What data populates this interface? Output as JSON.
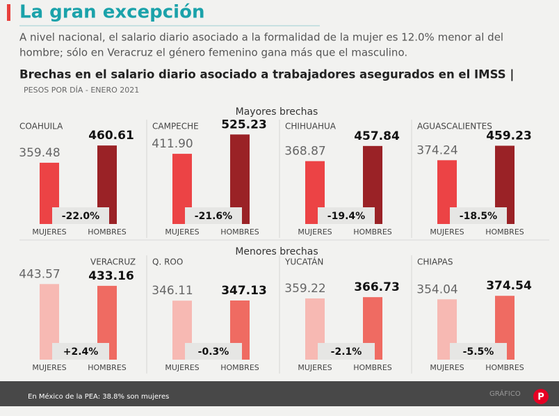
{
  "header": {
    "title": "La gran excepción",
    "subtitle_lines": [
      "A nivel nacional, el salario diario asociado a la formalidad de la mujer es 12.0% menor al del",
      "hombre; sólo en Veracruz el género femenino gana más que el masculino."
    ],
    "chart_title": "Brechas en el salario diario asociado a trabajadores asegurados en el IMSS |",
    "units": "PESOS POR DÍA - ENERO 2021"
  },
  "sections": [
    "Mayores brechas",
    "Menores brechas"
  ],
  "chart_data": [
    {
      "type": "bar",
      "title": "COAHUILA",
      "categories": [
        "MUJERES",
        "HOMBRES"
      ],
      "values": [
        359.48,
        460.61
      ],
      "value_labels": [
        "359.48",
        "460.61"
      ],
      "colors": [
        "#ec4345",
        "#9a2226"
      ],
      "annotation": "-22.0%"
    },
    {
      "type": "bar",
      "title": "CAMPECHE",
      "categories": [
        "MUJERES",
        "HOMBRES"
      ],
      "values": [
        411.9,
        525.23
      ],
      "value_labels": [
        "411.90",
        "525.23"
      ],
      "colors": [
        "#ec4345",
        "#9a2226"
      ],
      "annotation": "-21.6%"
    },
    {
      "type": "bar",
      "title": "CHIHUAHUA",
      "categories": [
        "MUJERES",
        "HOMBRES"
      ],
      "values": [
        368.87,
        457.84
      ],
      "value_labels": [
        "368.87",
        "457.84"
      ],
      "colors": [
        "#ec4345",
        "#9a2226"
      ],
      "annotation": "-19.4%"
    },
    {
      "type": "bar",
      "title": "AGUASCALIENTES",
      "categories": [
        "MUJERES",
        "HOMBRES"
      ],
      "values": [
        374.24,
        459.23
      ],
      "value_labels": [
        "374.24",
        "459.23"
      ],
      "colors": [
        "#ec4345",
        "#9a2226"
      ],
      "annotation": "-18.5%"
    },
    {
      "type": "bar",
      "title": "VERACRUZ",
      "categories": [
        "MUJERES",
        "HOMBRES"
      ],
      "values": [
        443.57,
        433.16
      ],
      "value_labels": [
        "443.57",
        "433.16"
      ],
      "colors": [
        "#f7b9b3",
        "#ef6b62"
      ],
      "annotation": "+2.4%"
    },
    {
      "type": "bar",
      "title": "Q. ROO",
      "categories": [
        "MUJERES",
        "HOMBRES"
      ],
      "values": [
        346.11,
        347.13
      ],
      "value_labels": [
        "346.11",
        "347.13"
      ],
      "colors": [
        "#f7b9b3",
        "#ef6b62"
      ],
      "annotation": "-0.3%"
    },
    {
      "type": "bar",
      "title": "YUCATÁN",
      "categories": [
        "MUJERES",
        "HOMBRES"
      ],
      "values": [
        359.22,
        366.73
      ],
      "value_labels": [
        "359.22",
        "366.73"
      ],
      "colors": [
        "#f7b9b3",
        "#ef6b62"
      ],
      "annotation": "-2.1%"
    },
    {
      "type": "bar",
      "title": "CHIAPAS",
      "categories": [
        "MUJERES",
        "HOMBRES"
      ],
      "values": [
        354.04,
        374.54
      ],
      "value_labels": [
        "354.04",
        "374.54"
      ],
      "colors": [
        "#f7b9b3",
        "#ef6b62"
      ],
      "annotation": "-5.5%"
    }
  ],
  "footer": {
    "caption": "En México de la PEA: 38.8% son mujeres",
    "credit": "GRÁFICO"
  }
}
